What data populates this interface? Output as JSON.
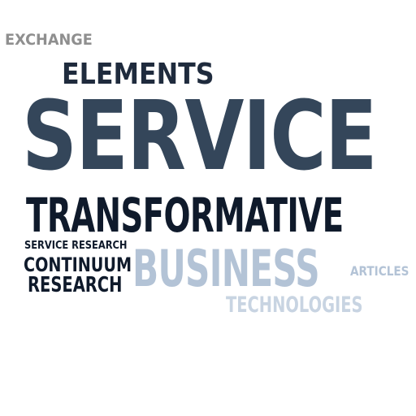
{
  "cloud": {
    "words": {
      "exchange": "EXCHANGE",
      "elements": "ELEMENTS",
      "service": "SERVICE",
      "transformative": "TRANSFORMATIVE",
      "service_research": "SERVICE RESEARCH",
      "continuum": "CONTINUUM",
      "research": "RESEARCH",
      "business": "BUSINESS",
      "articles": "ARTICLES",
      "technologies": "TECHNOLOGIES"
    },
    "colors": {
      "gray": "#8f8f8f",
      "navy_dark": "#1f2b3d",
      "slate": "#34465a",
      "black_navy": "#0f1a2b",
      "pale_blue": "#b3c3d6",
      "paler_blue": "#c8d4e2"
    }
  }
}
